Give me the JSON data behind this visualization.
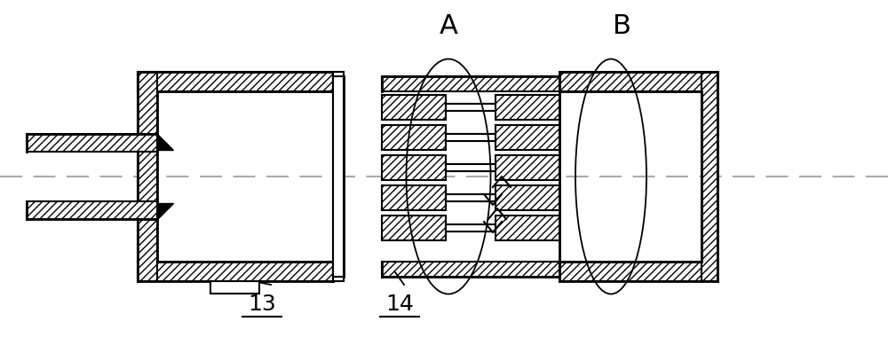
{
  "bg_color": "#ffffff",
  "line_color": "#000000",
  "label_A": "A",
  "label_B": "B",
  "label_13": "13",
  "label_14": "14",
  "fig_width": 10.0,
  "fig_height": 3.98
}
